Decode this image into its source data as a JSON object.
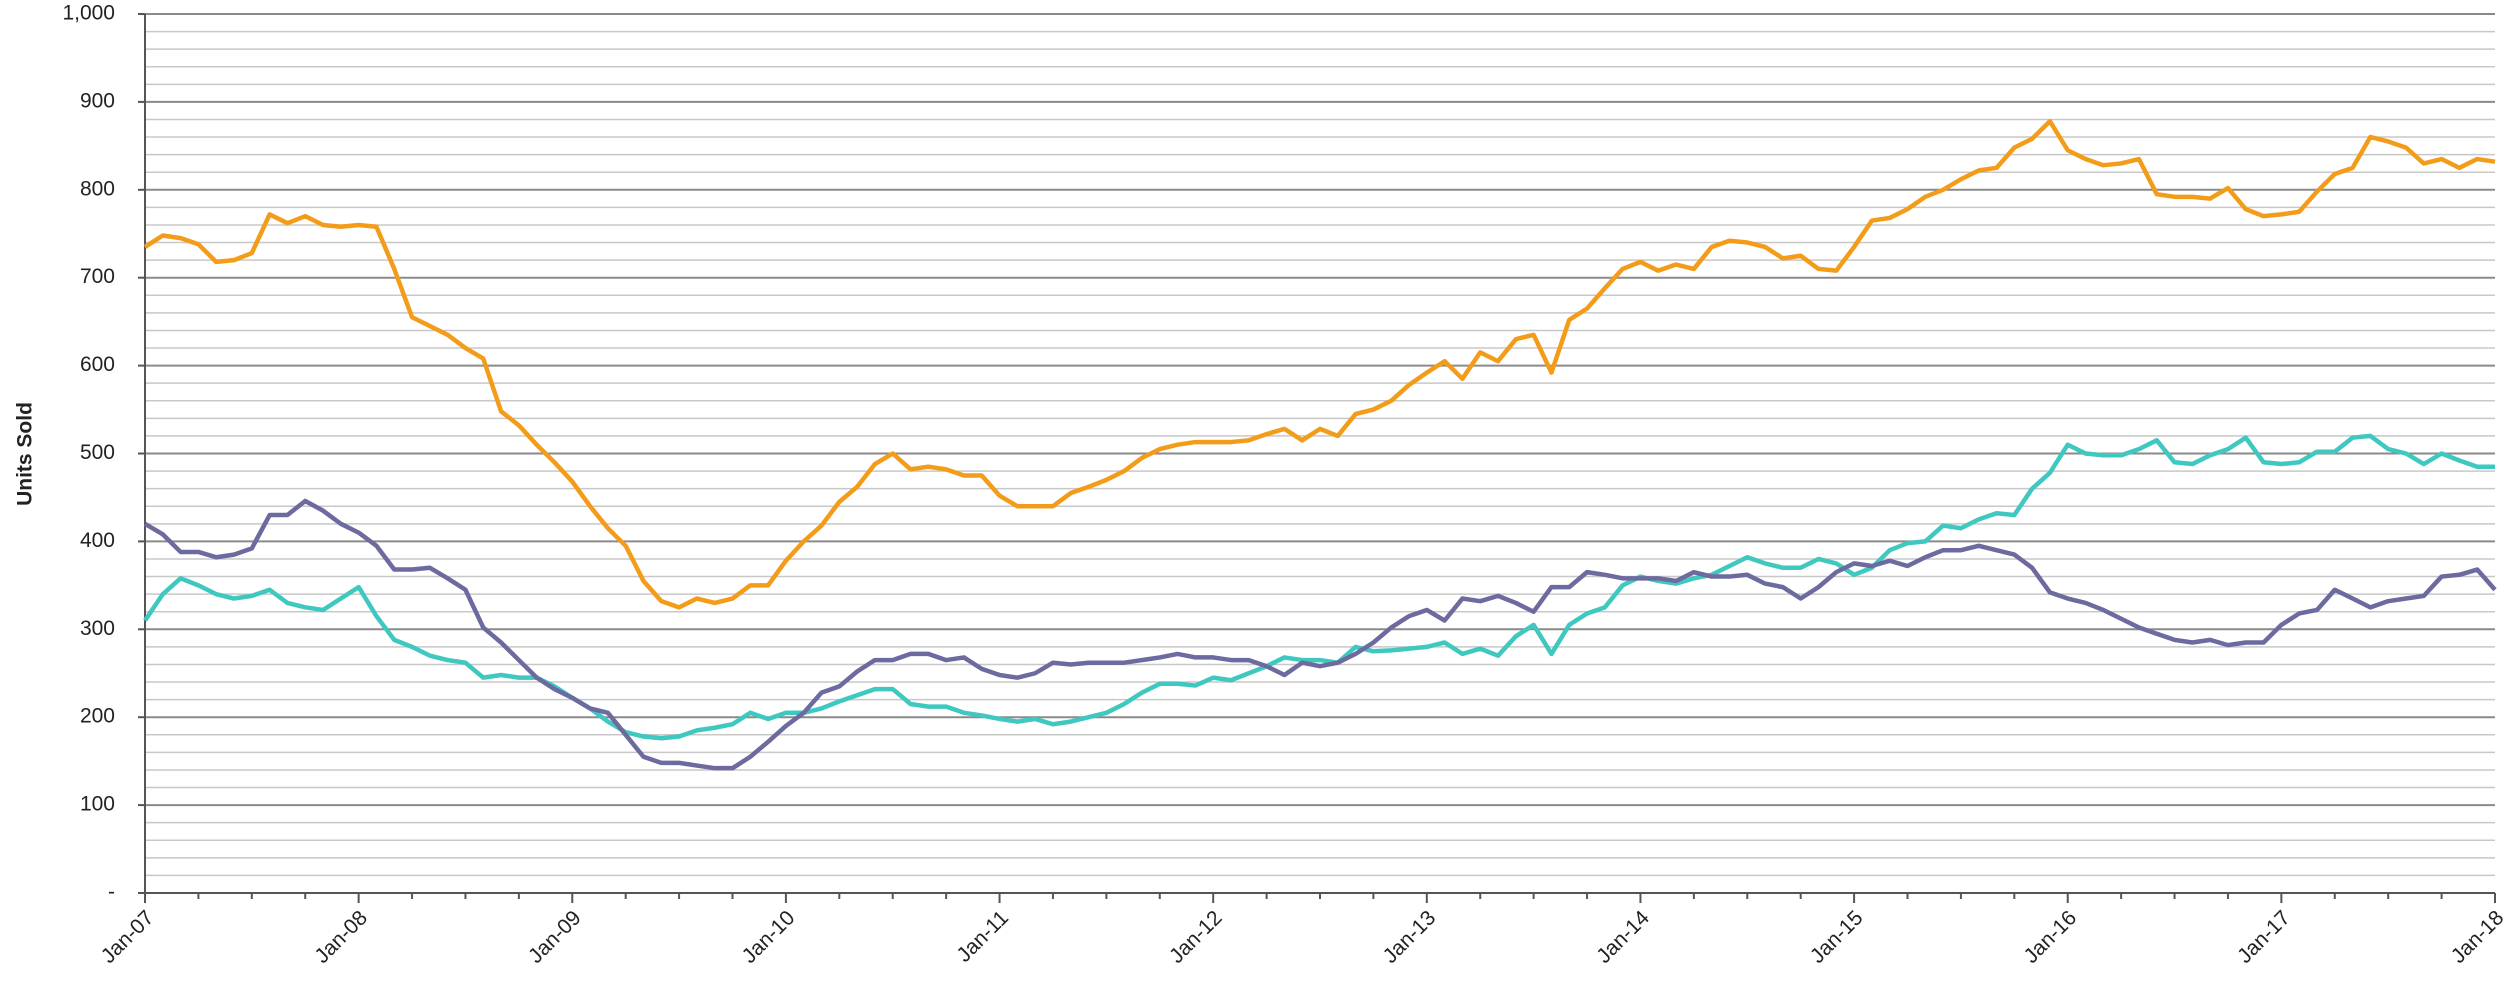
{
  "chart_data": {
    "type": "line",
    "y_label": "Units Sold",
    "categories": [
      "Jan-07",
      null,
      null,
      null,
      null,
      null,
      null,
      null,
      null,
      null,
      null,
      null,
      "Jan-08",
      null,
      null,
      null,
      null,
      null,
      null,
      null,
      null,
      null,
      null,
      null,
      "Jan-09",
      null,
      null,
      null,
      null,
      null,
      null,
      null,
      null,
      null,
      null,
      null,
      "Jan-10",
      null,
      null,
      null,
      null,
      null,
      null,
      null,
      null,
      null,
      null,
      null,
      "Jan-11",
      null,
      null,
      null,
      null,
      null,
      null,
      null,
      null,
      null,
      null,
      null,
      "Jan-12",
      null,
      null,
      null,
      null,
      null,
      null,
      null,
      null,
      null,
      null,
      null,
      "Jan-13",
      null,
      null,
      null,
      null,
      null,
      null,
      null,
      null,
      null,
      null,
      null,
      "Jan-14",
      null,
      null,
      null,
      null,
      null,
      null,
      null,
      null,
      null,
      null,
      null,
      "Jan-15",
      null,
      null,
      null,
      null,
      null,
      null,
      null,
      null,
      null,
      null,
      null,
      "Jan-16",
      null,
      null,
      null,
      null,
      null,
      null,
      null,
      null,
      null,
      null,
      null,
      "Jan-17",
      null,
      null,
      null,
      null,
      null,
      null,
      null,
      null,
      null,
      null,
      null,
      "Jan-18"
    ],
    "series": [
      {
        "color": "#f39c1a",
        "values": [
          735,
          748,
          745,
          738,
          718,
          720,
          728,
          772,
          762,
          770,
          760,
          758,
          760,
          758,
          710,
          655,
          645,
          635,
          620,
          608,
          548,
          532,
          510,
          490,
          468,
          440,
          415,
          395,
          355,
          332,
          325,
          335,
          330,
          335,
          350,
          350,
          378,
          400,
          418,
          445,
          462,
          488,
          500,
          482,
          485,
          482,
          475,
          475,
          452,
          440,
          440,
          440,
          455,
          462,
          470,
          480,
          495,
          505,
          510,
          513,
          513,
          513,
          515,
          522,
          528,
          515,
          528,
          520,
          545,
          550,
          560,
          578,
          592,
          605,
          585,
          615,
          605,
          630,
          635,
          592,
          652,
          665,
          688,
          710,
          718,
          708,
          715,
          710,
          735,
          742,
          740,
          735,
          722,
          725,
          710,
          708,
          735,
          765,
          768,
          778,
          792,
          800,
          812,
          822,
          825,
          848,
          858,
          878,
          845,
          835,
          828,
          830,
          835,
          795,
          792,
          792,
          790,
          802,
          778,
          770,
          772,
          775,
          798,
          818,
          825,
          860,
          855,
          848,
          830,
          835,
          825,
          835,
          832
        ]
      },
      {
        "color": "#3ec8c0",
        "values": [
          310,
          340,
          358,
          350,
          340,
          335,
          338,
          345,
          330,
          325,
          322,
          335,
          348,
          315,
          288,
          280,
          270,
          265,
          262,
          245,
          248,
          245,
          245,
          235,
          222,
          210,
          195,
          183,
          178,
          176,
          178,
          185,
          188,
          192,
          205,
          198,
          205,
          205,
          210,
          218,
          225,
          232,
          232,
          215,
          212,
          212,
          205,
          202,
          198,
          195,
          198,
          192,
          195,
          200,
          205,
          215,
          228,
          238,
          238,
          236,
          245,
          242,
          250,
          258,
          268,
          265,
          265,
          262,
          280,
          275,
          276,
          278,
          280,
          285,
          272,
          278,
          270,
          292,
          305,
          272,
          305,
          318,
          325,
          350,
          360,
          355,
          352,
          358,
          362,
          372,
          382,
          375,
          370,
          370,
          380,
          375,
          362,
          370,
          390,
          398,
          400,
          418,
          415,
          425,
          432,
          430,
          460,
          478,
          510,
          500,
          498,
          498,
          505,
          515,
          490,
          488,
          498,
          505,
          518,
          490,
          488,
          490,
          502,
          502,
          518,
          520,
          505,
          500,
          488,
          500,
          492,
          485,
          485
        ]
      },
      {
        "color": "#6c6a9e",
        "values": [
          420,
          408,
          388,
          388,
          382,
          385,
          392,
          430,
          430,
          446,
          435,
          420,
          410,
          395,
          368,
          368,
          370,
          358,
          345,
          302,
          285,
          265,
          245,
          232,
          222,
          210,
          205,
          180,
          155,
          148,
          148,
          145,
          142,
          142,
          155,
          172,
          190,
          205,
          228,
          235,
          252,
          265,
          265,
          272,
          272,
          265,
          268,
          255,
          248,
          245,
          250,
          262,
          260,
          262,
          262,
          262,
          265,
          268,
          272,
          268,
          268,
          265,
          265,
          258,
          248,
          262,
          258,
          262,
          272,
          285,
          302,
          315,
          322,
          310,
          335,
          332,
          338,
          330,
          320,
          348,
          348,
          365,
          362,
          358,
          358,
          358,
          355,
          365,
          360,
          360,
          362,
          352,
          348,
          335,
          348,
          365,
          375,
          372,
          378,
          372,
          382,
          390,
          390,
          395,
          390,
          385,
          370,
          342,
          335,
          330,
          322,
          312,
          302,
          295,
          288,
          285,
          288,
          282,
          285,
          285,
          305,
          318,
          322,
          345,
          335,
          325,
          332,
          335,
          338,
          360,
          362,
          368,
          345
        ]
      }
    ],
    "ylim": [
      0,
      1000
    ],
    "yticks": [
      {
        "value": 0,
        "label": "-"
      },
      100,
      200,
      300,
      400,
      500,
      600,
      700,
      800,
      900,
      {
        "value": 1000,
        "label": "1,000"
      }
    ],
    "minor_yticks": [
      20,
      40,
      60,
      80,
      120,
      140,
      160,
      180,
      220,
      240,
      260,
      280,
      320,
      340,
      360,
      380,
      420,
      440,
      460,
      480,
      520,
      540,
      560,
      580,
      620,
      640,
      660,
      680,
      720,
      740,
      760,
      780,
      820,
      840,
      860,
      880,
      920,
      940,
      960,
      980
    ],
    "grid": true
  }
}
